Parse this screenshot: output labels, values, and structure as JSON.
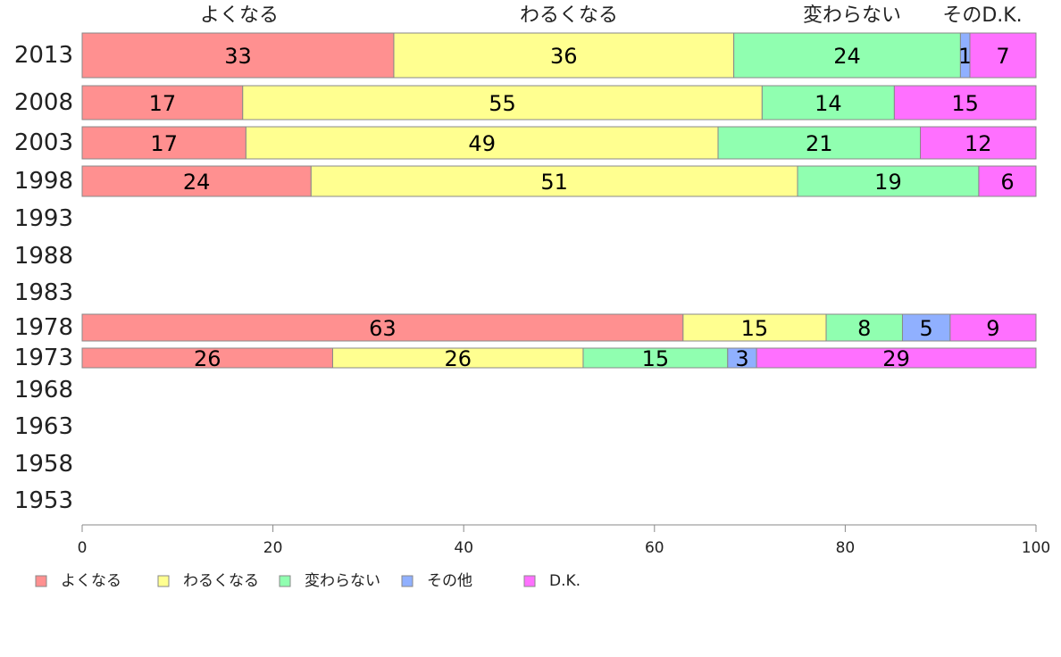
{
  "chart_data": {
    "type": "bar",
    "orientation": "horizontal",
    "stacked": true,
    "categories": [
      "2013",
      "2008",
      "2003",
      "1998",
      "1993",
      "1988",
      "1983",
      "1978",
      "1973",
      "1968",
      "1963",
      "1958",
      "1953"
    ],
    "top_labels": [
      "よくなる",
      "わるくなる",
      "変わらない",
      "そのD.K."
    ],
    "series": [
      {
        "name": "よくなる",
        "color": "#ff9090",
        "values": [
          33,
          17,
          17,
          24,
          null,
          null,
          null,
          63,
          26,
          null,
          null,
          null,
          null
        ]
      },
      {
        "name": "わるくなる",
        "color": "#ffff90",
        "values": [
          36,
          55,
          49,
          51,
          null,
          null,
          null,
          15,
          26,
          null,
          null,
          null,
          null
        ]
      },
      {
        "name": "変わらない",
        "color": "#90ffb0",
        "values": [
          24,
          14,
          21,
          19,
          null,
          null,
          null,
          8,
          15,
          null,
          null,
          null,
          null
        ]
      },
      {
        "name": "その他",
        "color": "#90b0ff",
        "values": [
          1,
          0,
          0,
          0,
          null,
          null,
          null,
          5,
          3,
          null,
          null,
          null,
          null
        ]
      },
      {
        "name": "D.K.",
        "color": "#ff70ff",
        "values": [
          7,
          15,
          12,
          6,
          null,
          null,
          null,
          9,
          29,
          null,
          null,
          null,
          null
        ]
      }
    ],
    "xlim": [
      0,
      100
    ],
    "xticks": [
      "0",
      "20",
      "40",
      "60",
      "80",
      "100"
    ],
    "legend_position": "bottom-left",
    "grid": false
  }
}
